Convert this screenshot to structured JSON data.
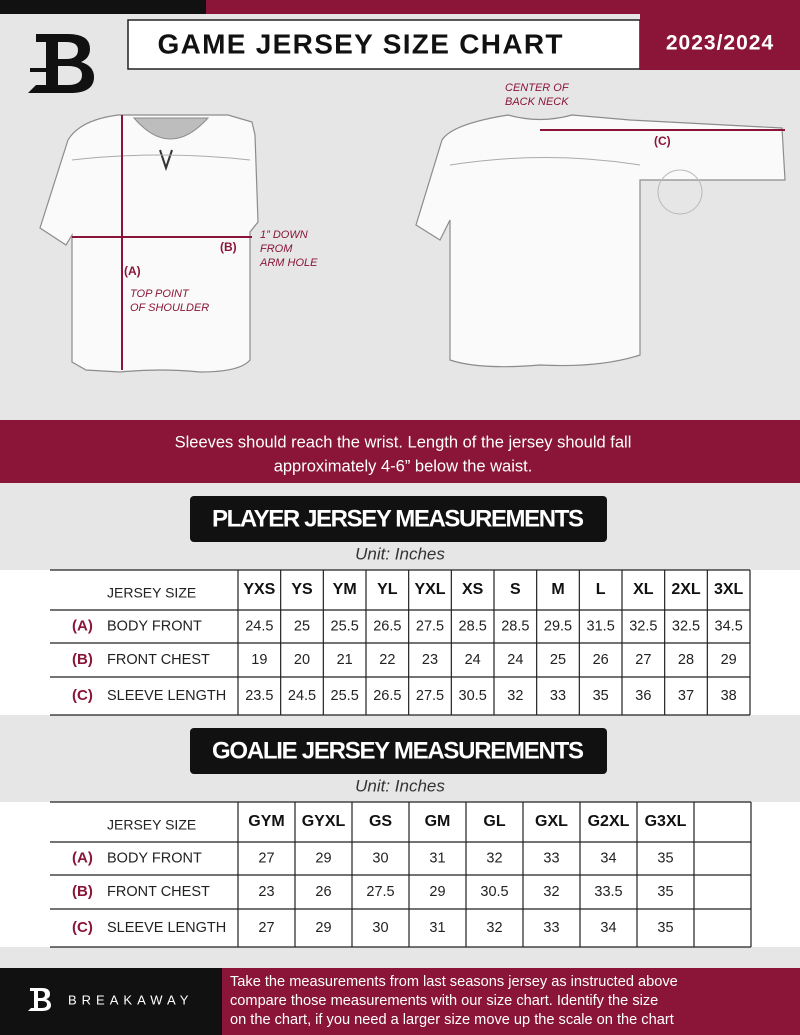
{
  "header": {
    "title": "GAME JERSEY SIZE CHART",
    "season": "2023/2024"
  },
  "diagram": {
    "back_neck": [
      "CENTER OF",
      "BACK NECK"
    ],
    "arm_hole": [
      "1” DOWN",
      "FROM",
      "ARM HOLE"
    ],
    "shoulder": [
      "TOP POINT",
      "OF SHOULDER"
    ],
    "a": "(A)",
    "b": "(B)",
    "c": "(C)"
  },
  "note": [
    "Sleeves should reach the wrist. Length of the jersey should fall",
    "approximately 4-6” below the waist."
  ],
  "player": {
    "title": "PLAYER JERSEY MEASUREMENTS",
    "unit": "Unit: Inches",
    "header": "JERSEY SIZE",
    "sizes": [
      "YXS",
      "YS",
      "YM",
      "YL",
      "YXL",
      "XS",
      "S",
      "M",
      "L",
      "XL",
      "2XL",
      "3XL"
    ],
    "rows": [
      {
        "code": "(A)",
        "label": "BODY FRONT",
        "values": [
          24.5,
          25,
          25.5,
          26.5,
          27.5,
          28.5,
          28.5,
          29.5,
          31.5,
          32.5,
          32.5,
          34.5
        ]
      },
      {
        "code": "(B)",
        "label": "FRONT CHEST",
        "values": [
          19,
          20,
          21,
          22,
          23,
          24,
          24,
          25,
          26,
          27,
          28,
          29
        ]
      },
      {
        "code": "(C)",
        "label": "SLEEVE LENGTH",
        "values": [
          23.5,
          24.5,
          25.5,
          26.5,
          27.5,
          30.5,
          32,
          33,
          35,
          36,
          37,
          38
        ]
      }
    ]
  },
  "goalie": {
    "title": "GOALIE JERSEY MEASUREMENTS",
    "unit": "Unit: Inches",
    "header": "JERSEY SIZE",
    "sizes": [
      "GYM",
      "GYXL",
      "GS",
      "GM",
      "GL",
      "GXL",
      "G2XL",
      "G3XL"
    ],
    "rows": [
      {
        "code": "(A)",
        "label": "BODY FRONT",
        "values": [
          27,
          29,
          30,
          31,
          32,
          33,
          34,
          35
        ]
      },
      {
        "code": "(B)",
        "label": "FRONT CHEST",
        "values": [
          23,
          26,
          27.5,
          29,
          30.5,
          32,
          33.5,
          35
        ]
      },
      {
        "code": "(C)",
        "label": "SLEEVE LENGTH",
        "values": [
          27,
          29,
          30,
          31,
          32,
          33,
          34,
          35
        ]
      }
    ]
  },
  "footer": {
    "brand": "BREAKAWAY",
    "text": [
      "Take the measurements from last seasons jersey as instructed above",
      "compare those measurements  with our size chart. Identify the size",
      "on the chart, if you need a larger size move up the scale on the chart"
    ]
  }
}
